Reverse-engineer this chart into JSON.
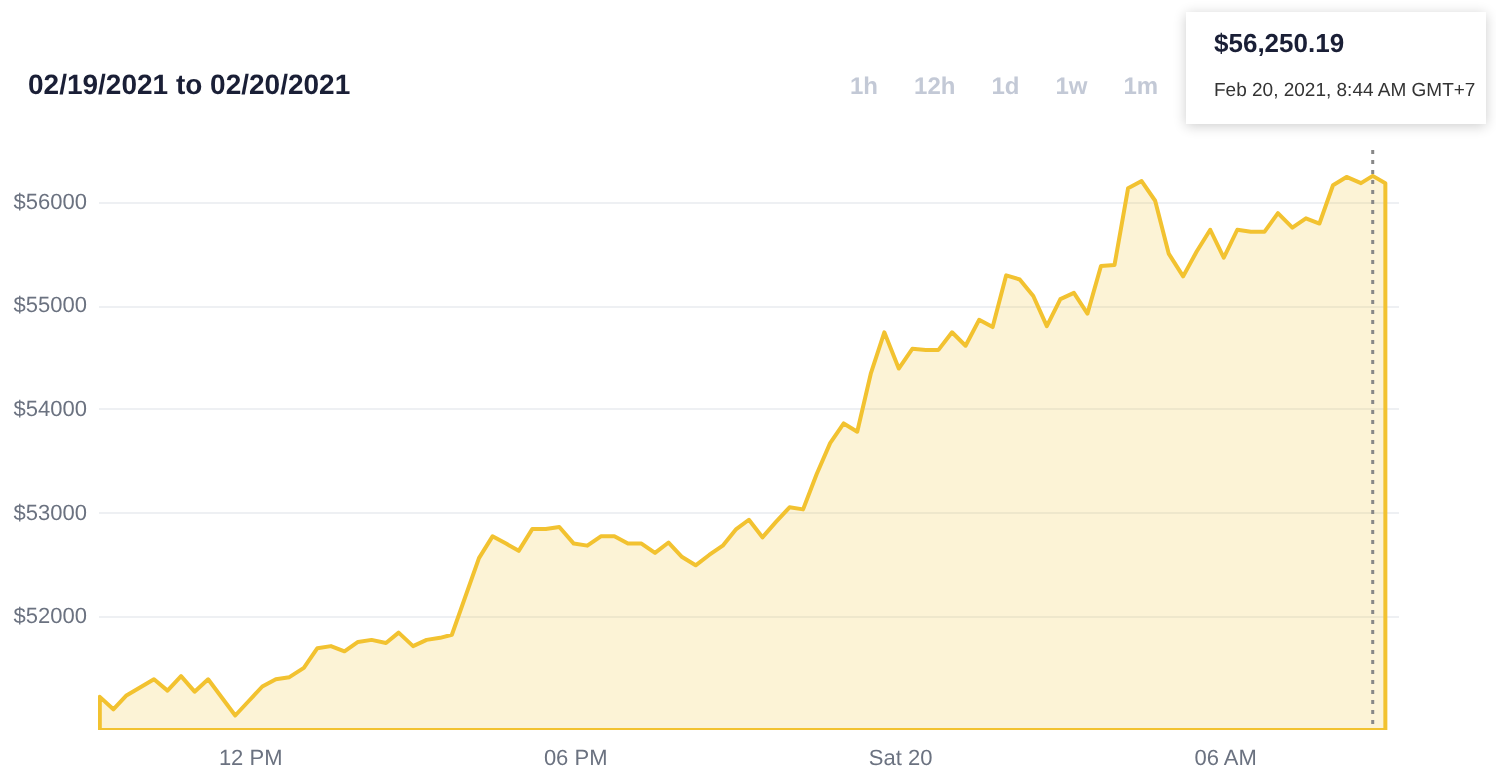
{
  "chart_data": {
    "type": "area",
    "title": "02/19/2021 to 02/20/2021",
    "annotations": [
      "1h",
      "12h",
      "1d",
      "1w",
      "1m",
      "$56,250.19",
      "Feb 20, 2021, 8:44 AM GMT+7"
    ],
    "x": [
      "2021-02-19T09:14",
      "2021-02-19T09:29",
      "2021-02-19T09:43",
      "2021-02-19T10:14",
      "2021-02-19T10:29",
      "2021-02-19T10:44",
      "2021-02-19T10:59",
      "2021-02-19T11:14",
      "2021-02-19T11:44",
      "2021-02-19T11:59",
      "2021-02-19T12:14",
      "2021-02-19T12:29",
      "2021-02-19T12:44",
      "2021-02-19T13:00",
      "2021-02-19T13:15",
      "2021-02-19T13:30",
      "2021-02-19T13:45",
      "2021-02-19T14:00",
      "2021-02-19T14:15",
      "2021-02-19T14:31",
      "2021-02-19T14:45",
      "2021-02-19T15:01",
      "2021-02-19T15:16",
      "2021-02-19T15:31",
      "2021-02-19T15:44",
      "2021-02-19T16:14",
      "2021-02-19T16:29",
      "2021-02-19T16:44",
      "2021-02-19T16:58",
      "2021-02-19T17:13",
      "2021-02-19T17:28",
      "2021-02-19T17:43",
      "2021-02-19T17:59",
      "2021-02-19T18:14",
      "2021-02-19T18:29",
      "2021-02-19T18:44",
      "2021-02-19T18:59",
      "2021-02-19T19:14",
      "2021-02-19T19:29",
      "2021-02-19T19:44",
      "2021-02-19T19:59",
      "2021-02-19T20:14",
      "2021-02-19T20:29",
      "2021-02-19T20:44",
      "2021-02-19T20:59",
      "2021-02-19T21:13",
      "2021-02-19T21:28",
      "2021-02-19T21:43",
      "2021-02-19T21:58",
      "2021-02-19T22:13",
      "2021-02-19T22:28",
      "2021-02-19T22:43",
      "2021-02-19T22:58",
      "2021-02-19T23:13",
      "2021-02-19T23:28",
      "2021-02-19T23:43",
      "2021-02-19T23:59",
      "2021-02-20T00:14",
      "2021-02-20T00:29",
      "2021-02-20T00:43",
      "2021-02-20T00:58",
      "2021-02-20T01:13",
      "2021-02-20T01:28",
      "2021-02-20T01:43",
      "2021-02-20T01:58",
      "2021-02-20T02:13",
      "2021-02-20T02:28",
      "2021-02-20T02:43",
      "2021-02-20T02:58",
      "2021-02-20T03:13",
      "2021-02-20T03:28",
      "2021-02-20T03:43",
      "2021-02-20T03:58",
      "2021-02-20T04:13",
      "2021-02-20T04:28",
      "2021-02-20T04:43",
      "2021-02-20T04:58",
      "2021-02-20T05:14",
      "2021-02-20T05:29",
      "2021-02-20T05:44",
      "2021-02-20T05:59",
      "2021-02-20T06:14",
      "2021-02-20T06:29",
      "2021-02-20T06:44",
      "2021-02-20T06:59",
      "2021-02-20T07:15",
      "2021-02-20T07:30",
      "2021-02-20T07:45",
      "2021-02-20T08:00",
      "2021-02-20T08:15",
      "2021-02-20T08:31",
      "2021-02-20T08:44",
      "2021-02-20T08:58"
    ],
    "series": [
      {
        "color": "#f2c230",
        "values": [
          51220,
          51100,
          51230,
          51390,
          51280,
          51420,
          51270,
          51390,
          51040,
          51180,
          51320,
          51390,
          51410,
          51500,
          51690,
          51710,
          51660,
          51750,
          51770,
          51740,
          51840,
          51710,
          51770,
          51790,
          51820,
          52560,
          52770,
          52700,
          52630,
          52840,
          52840,
          52860,
          52700,
          52680,
          52770,
          52770,
          52700,
          52700,
          52610,
          52710,
          52570,
          52490,
          52590,
          52680,
          52840,
          52930,
          52760,
          52910,
          53050,
          53030,
          53370,
          53670,
          53860,
          53780,
          54340,
          54740,
          54390,
          54580,
          54570,
          54570,
          54740,
          54610,
          54860,
          54790,
          55290,
          55250,
          55090,
          54800,
          55060,
          55120,
          54920,
          55380,
          55390,
          56130,
          56200,
          56010,
          55500,
          55280,
          55520,
          55730,
          55460,
          55730,
          55710,
          55710,
          55890,
          55750,
          55840,
          55790,
          56160,
          56240,
          56180,
          56250.19,
          56180
        ]
      }
    ],
    "xlim": [
      "2021-02-19T09:12",
      "2021-02-20T09:12"
    ],
    "xticks": [
      {
        "value": "2021-02-19T12:00",
        "label": "12 PM"
      },
      {
        "value": "2021-02-19T18:00",
        "label": "06 PM"
      },
      {
        "value": "2021-02-20T00:00",
        "label": "Sat 20"
      },
      {
        "value": "2021-02-20T06:00",
        "label": "06 AM"
      }
    ],
    "ylim": [
      50900,
      56500
    ],
    "yticks": [
      {
        "value": 52000,
        "label": "$52000"
      },
      {
        "value": 53000,
        "label": "$53000"
      },
      {
        "value": 54000,
        "label": "$54000"
      },
      {
        "value": 55000,
        "label": "$55000"
      },
      {
        "value": 56000,
        "label": "$56000"
      }
    ],
    "ref_lines": [
      {
        "axis": "x",
        "value": "2021-02-20T08:44",
        "color": "#888888",
        "line_style": "dotted"
      }
    ],
    "grid": "y"
  }
}
